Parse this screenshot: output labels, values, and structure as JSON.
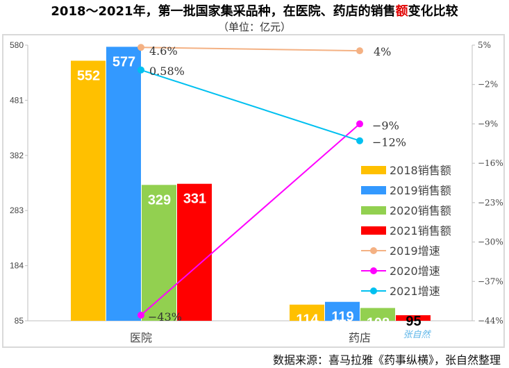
{
  "title": {
    "before": "2018～2021年，第一批国家集采品种，在医院、药店的销售",
    "highlight": "额",
    "after": "变化比较"
  },
  "subtitle": "（单位：亿元）",
  "source": "数据来源：喜马拉雅《药事纵横》，张自然整理",
  "watermark": "张自然",
  "chart_data": {
    "type": "bar+line",
    "categories": [
      "医院",
      "药店"
    ],
    "bar_series": [
      {
        "name": "2018销售额",
        "color": "#FFC000",
        "values": [
          552,
          114
        ],
        "label_color": "#ffffff"
      },
      {
        "name": "2019销售额",
        "color": "#3399FF",
        "values": [
          577,
          119
        ],
        "label_color": "#ffffff"
      },
      {
        "name": "2020销售额",
        "color": "#92D050",
        "values": [
          329,
          108
        ],
        "label_color": "#ffffff"
      },
      {
        "name": "2021销售额",
        "color": "#FF0000",
        "values": [
          331,
          95
        ],
        "label_color": "#ffffff"
      }
    ],
    "line_series": [
      {
        "name": "2019增速",
        "color": "#F4B183",
        "values": [
          4.6,
          4
        ],
        "labels": [
          "4.6%",
          "4%"
        ]
      },
      {
        "name": "2020增速",
        "color": "#FF00FF",
        "values": [
          -43,
          -9
        ],
        "labels": [
          "-43%",
          "-9%"
        ]
      },
      {
        "name": "2021增速",
        "color": "#00C0F0",
        "values": [
          0.58,
          -12
        ],
        "labels": [
          "0.58%",
          "-12%"
        ]
      }
    ],
    "left_axis": {
      "range": [
        85,
        580
      ],
      "ticks": [
        "85",
        "184",
        "283",
        "382",
        "481",
        "580"
      ]
    },
    "right_axis": {
      "range": [
        -44,
        5
      ],
      "ticks": [
        "5%",
        "-2%",
        "-9%",
        "-16%",
        "-23%",
        "-30%",
        "-37%",
        "-44%"
      ]
    },
    "legend_position": "right",
    "grid": false
  }
}
